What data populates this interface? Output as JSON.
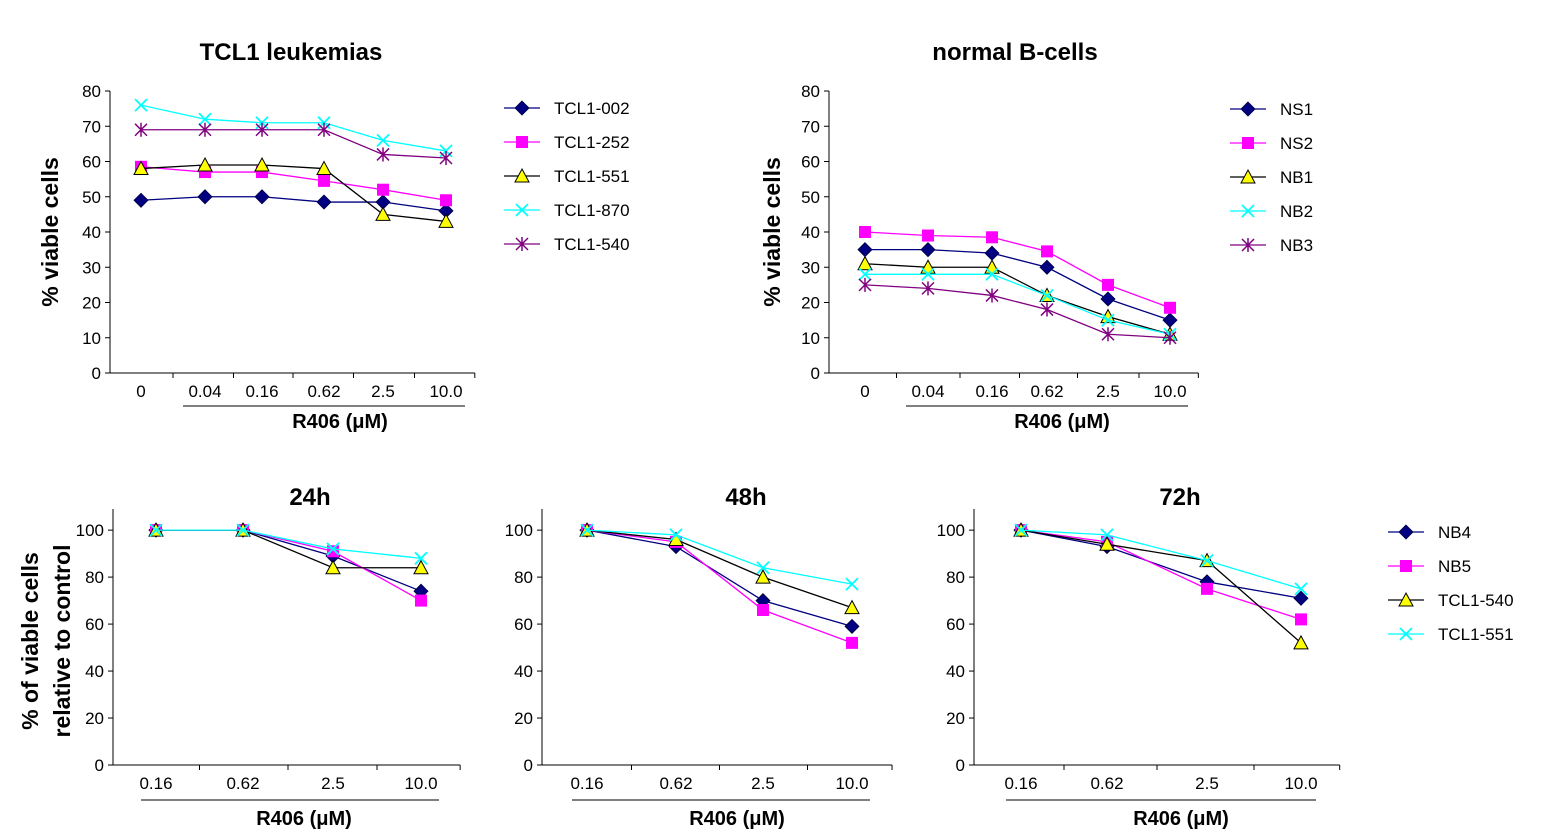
{
  "chart_data": [
    {
      "id": "A",
      "type": "line",
      "title": "TCL1 leukemias",
      "ylabel": "% viable cells",
      "xlabel": "R406 (μM)",
      "categories": [
        "0",
        "0.04",
        "0.16",
        "0.62",
        "2.5",
        "10.0"
      ],
      "ylim": [
        0,
        80
      ],
      "yticks": [
        0,
        10,
        20,
        30,
        40,
        50,
        60,
        70,
        80
      ],
      "grid": false,
      "legend": "right",
      "series": [
        {
          "name": "TCL1-002",
          "marker": "diamond",
          "color": "#000080",
          "values": [
            49,
            50,
            50,
            48.5,
            48.5,
            46
          ]
        },
        {
          "name": "TCL1-252",
          "marker": "square",
          "color": "#ff00ff",
          "values": [
            58.5,
            57,
            57,
            54.5,
            52,
            49
          ]
        },
        {
          "name": "TCL1-551",
          "marker": "triangle",
          "color": "#ffff00",
          "values": [
            58,
            59,
            59,
            58,
            45,
            43
          ]
        },
        {
          "name": "TCL1-870",
          "marker": "x",
          "color": "#00ffff",
          "values": [
            76,
            72,
            71,
            71,
            66,
            63
          ]
        },
        {
          "name": "TCL1-540",
          "marker": "star",
          "color": "#800080",
          "values": [
            69,
            69,
            69,
            69,
            62,
            61
          ]
        }
      ]
    },
    {
      "id": "B",
      "type": "line",
      "title": "normal B-cells",
      "ylabel": "% viable cells",
      "xlabel": "R406 (μM)",
      "categories": [
        "0",
        "0.04",
        "0.16",
        "0.62",
        "2.5",
        "10.0"
      ],
      "ylim": [
        0,
        80
      ],
      "yticks": [
        0,
        10,
        20,
        30,
        40,
        50,
        60,
        70,
        80
      ],
      "grid": false,
      "legend": "right",
      "series": [
        {
          "name": "NS1",
          "marker": "diamond",
          "color": "#000080",
          "values": [
            35,
            35,
            34,
            30,
            21,
            15
          ]
        },
        {
          "name": "NS2",
          "marker": "square",
          "color": "#ff00ff",
          "values": [
            40,
            39,
            38.5,
            34.5,
            25,
            18.5
          ]
        },
        {
          "name": "NB1",
          "marker": "triangle",
          "color": "#ffff00",
          "values": [
            31,
            30,
            30,
            22,
            16,
            11
          ]
        },
        {
          "name": "NB2",
          "marker": "x",
          "color": "#00ffff",
          "values": [
            28,
            28,
            28,
            22,
            15,
            11
          ]
        },
        {
          "name": "NB3",
          "marker": "star",
          "color": "#800080",
          "values": [
            25,
            24,
            22,
            18,
            11,
            10
          ]
        }
      ]
    },
    {
      "id": "C",
      "type": "line",
      "title": "24h",
      "ylabel": "% of viable cells\nrelative to control",
      "xlabel": "R406 (μM)",
      "categories": [
        "0.16",
        "0.62",
        "2.5",
        "10.0"
      ],
      "ylim": [
        0,
        100
      ],
      "yticks": [
        0,
        20,
        40,
        60,
        80,
        100
      ],
      "grid": false,
      "series": [
        {
          "name": "NB4",
          "marker": "diamond",
          "color": "#000080",
          "values": [
            100,
            100,
            89,
            74
          ]
        },
        {
          "name": "NB5",
          "marker": "square",
          "color": "#ff00ff",
          "values": [
            100,
            100,
            91,
            70
          ]
        },
        {
          "name": "TCL1-540",
          "marker": "triangle",
          "color": "#ffff00",
          "values": [
            100,
            100,
            84,
            84
          ]
        },
        {
          "name": "TCL1-551",
          "marker": "x",
          "color": "#00ffff",
          "values": [
            100,
            100,
            92,
            88
          ]
        }
      ]
    },
    {
      "id": "D",
      "type": "line",
      "title": "48h",
      "xlabel": "R406 (μM)",
      "categories": [
        "0.16",
        "0.62",
        "2.5",
        "10.0"
      ],
      "ylim": [
        0,
        100
      ],
      "yticks": [
        0,
        20,
        40,
        60,
        80,
        100
      ],
      "grid": false,
      "series": [
        {
          "name": "NB4",
          "marker": "diamond",
          "color": "#000080",
          "values": [
            100,
            93,
            70,
            59
          ]
        },
        {
          "name": "NB5",
          "marker": "square",
          "color": "#ff00ff",
          "values": [
            100,
            95,
            66,
            52
          ]
        },
        {
          "name": "TCL1-540",
          "marker": "triangle",
          "color": "#ffff00",
          "values": [
            100,
            96,
            80,
            67
          ]
        },
        {
          "name": "TCL1-551",
          "marker": "x",
          "color": "#00ffff",
          "values": [
            100,
            98,
            84,
            77
          ]
        }
      ]
    },
    {
      "id": "E",
      "type": "line",
      "title": "72h",
      "xlabel": "R406 (μM)",
      "categories": [
        "0.16",
        "0.62",
        "2.5",
        "10.0"
      ],
      "ylim": [
        0,
        100
      ],
      "yticks": [
        0,
        20,
        40,
        60,
        80,
        100
      ],
      "grid": false,
      "legend": "right",
      "series": [
        {
          "name": "NB4",
          "marker": "diamond",
          "color": "#000080",
          "values": [
            100,
            93,
            78,
            71
          ]
        },
        {
          "name": "NB5",
          "marker": "square",
          "color": "#ff00ff",
          "values": [
            100,
            95,
            75,
            62
          ]
        },
        {
          "name": "TCL1-540",
          "marker": "triangle",
          "color": "#ffff00",
          "values": [
            100,
            94,
            87,
            52
          ]
        },
        {
          "name": "TCL1-551",
          "marker": "x",
          "color": "#00ffff",
          "values": [
            100,
            98,
            87,
            75
          ]
        }
      ]
    }
  ]
}
